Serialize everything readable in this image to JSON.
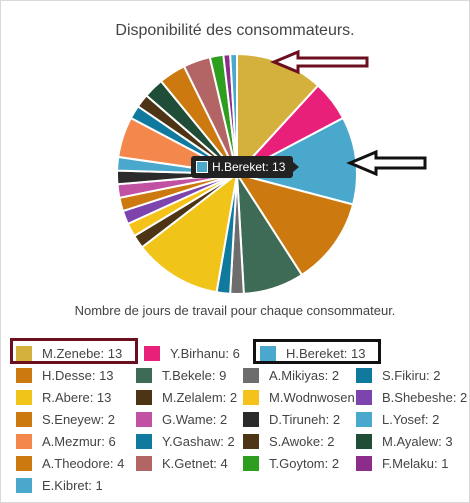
{
  "chart_data": {
    "type": "pie",
    "title": "Disponibilité des consommateurs.",
    "caption": "Nombre de jours de travail pour chaque consommateur.",
    "slices": [
      {
        "label": "M.Zenebe",
        "value": 13,
        "color": "#d4b13c"
      },
      {
        "label": "Y.Birhanu",
        "value": 6,
        "color": "#e8207a"
      },
      {
        "label": "H.Bereket",
        "value": 13,
        "color": "#4aa8cc"
      },
      {
        "label": "H.Desse",
        "value": 13,
        "color": "#cc7a0f"
      },
      {
        "label": "T.Bekele",
        "value": 9,
        "color": "#3d6b55"
      },
      {
        "label": "A.Mikiyas",
        "value": 2,
        "color": "#6d6d6d"
      },
      {
        "label": "S.Fikiru",
        "value": 2,
        "color": "#0f7a9e"
      },
      {
        "label": "R.Abere",
        "value": 13,
        "color": "#f0c419"
      },
      {
        "label": "M.Zelalem",
        "value": 2,
        "color": "#4d3415"
      },
      {
        "label": "M.Wodnwosen",
        "value": 2,
        "color": "#f5c21a"
      },
      {
        "label": "B.Shebeshe",
        "value": 2,
        "color": "#7e44ad"
      },
      {
        "label": "S.Eneyew",
        "value": 2,
        "color": "#cc7a0f"
      },
      {
        "label": "G.Wame",
        "value": 2,
        "color": "#c152a3"
      },
      {
        "label": "D.Tiruneh",
        "value": 2,
        "color": "#2b2b2b"
      },
      {
        "label": "L.Yosef",
        "value": 2,
        "color": "#4aa8cc"
      },
      {
        "label": "A.Mezmur",
        "value": 6,
        "color": "#f3874c"
      },
      {
        "label": "Y.Gashaw",
        "value": 2,
        "color": "#0f7a9e"
      },
      {
        "label": "S.Awoke",
        "value": 2,
        "color": "#4d3415"
      },
      {
        "label": "M.Ayalew",
        "value": 3,
        "color": "#1f4d37"
      },
      {
        "label": "A.Theodore",
        "value": 4,
        "color": "#cc7a0f"
      },
      {
        "label": "K.Getnet",
        "value": 4,
        "color": "#b36565"
      },
      {
        "label": "T.Goytom",
        "value": 2,
        "color": "#2e9e1f"
      },
      {
        "label": "F.Melaku",
        "value": 1,
        "color": "#8c2d8c"
      },
      {
        "label": "E.Kibret",
        "value": 1,
        "color": "#4aa8cc"
      }
    ],
    "tooltip": {
      "label": "H.Bereket",
      "value": 13
    },
    "highlighted": [
      "M.Zenebe",
      "H.Bereket"
    ],
    "annotation_colors": {
      "maroon": "#6b0f1e",
      "black": "#111111"
    }
  }
}
